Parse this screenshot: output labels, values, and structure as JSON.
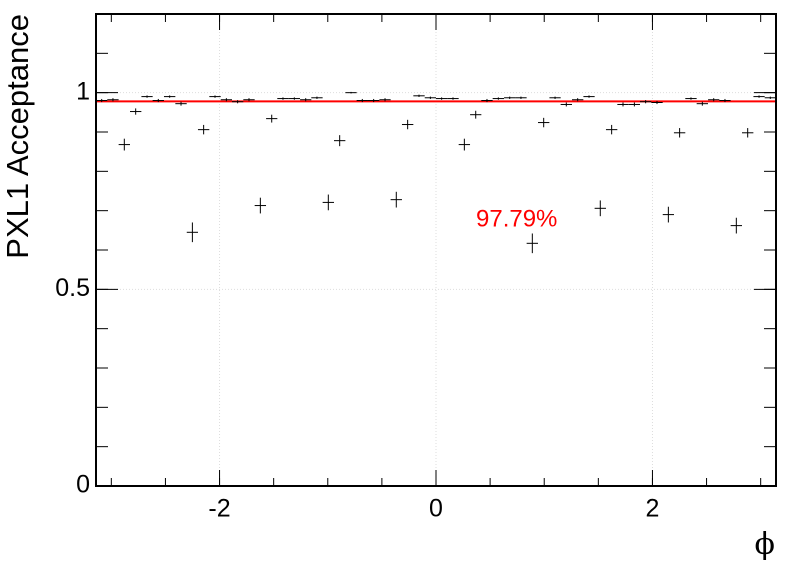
{
  "chart_data": {
    "type": "errorbar",
    "y_label": "PXL1 Acceptance",
    "x_label": "ϕ",
    "x": [
      -3.089,
      -2.985,
      -2.88,
      -2.775,
      -2.67,
      -2.566,
      -2.461,
      -2.356,
      -2.251,
      -2.147,
      -2.042,
      -1.937,
      -1.833,
      -1.728,
      -1.623,
      -1.518,
      -1.414,
      -1.309,
      -1.204,
      -1.1,
      -0.995,
      -0.89,
      -0.785,
      -0.681,
      -0.576,
      -0.471,
      -0.367,
      -0.262,
      -0.157,
      -0.052,
      0.052,
      0.157,
      0.262,
      0.367,
      0.471,
      0.576,
      0.681,
      0.785,
      0.89,
      0.995,
      1.1,
      1.204,
      1.309,
      1.414,
      1.518,
      1.623,
      1.728,
      1.833,
      1.937,
      2.042,
      2.147,
      2.251,
      2.356,
      2.461,
      2.566,
      2.67,
      2.775,
      2.88,
      2.985,
      3.089
    ],
    "values": [
      0.98,
      0.982,
      0.868,
      0.952,
      0.99,
      0.98,
      0.99,
      0.972,
      0.645,
      0.906,
      0.99,
      0.982,
      0.977,
      0.982,
      0.713,
      0.934,
      0.985,
      0.985,
      0.982,
      0.987,
      0.721,
      0.878,
      1.0,
      0.98,
      0.98,
      0.982,
      0.728,
      0.919,
      0.992,
      0.987,
      0.985,
      0.985,
      0.868,
      0.944,
      0.98,
      0.985,
      0.987,
      0.987,
      0.617,
      0.924,
      0.987,
      0.97,
      0.982,
      0.99,
      0.706,
      0.906,
      0.97,
      0.97,
      0.977,
      0.975,
      0.69,
      0.898,
      0.985,
      0.972,
      0.982,
      0.98,
      0.662,
      0.898,
      0.99,
      0.987
    ],
    "errors": [
      0.004,
      0.004,
      0.015,
      0.008,
      0.003,
      0.004,
      0.003,
      0.005,
      0.025,
      0.012,
      0.003,
      0.004,
      0.004,
      0.004,
      0.02,
      0.01,
      0.003,
      0.003,
      0.004,
      0.003,
      0.02,
      0.014,
      0.002,
      0.004,
      0.004,
      0.004,
      0.02,
      0.012,
      0.003,
      0.003,
      0.003,
      0.003,
      0.015,
      0.01,
      0.004,
      0.003,
      0.003,
      0.003,
      0.025,
      0.012,
      0.003,
      0.005,
      0.004,
      0.003,
      0.02,
      0.012,
      0.005,
      0.005,
      0.004,
      0.004,
      0.02,
      0.012,
      0.003,
      0.005,
      0.004,
      0.004,
      0.02,
      0.012,
      0.003,
      0.003
    ],
    "color": "#000000",
    "fit": {
      "value": 0.9779,
      "label": "97.79%",
      "color": "#ff0000"
    },
    "xlim": [
      -3.1416,
      3.1416
    ],
    "ylim": [
      0,
      1.2
    ],
    "xticks": [
      -2,
      0,
      2
    ],
    "yticks": [
      0,
      0.5,
      1
    ],
    "grid": true
  }
}
